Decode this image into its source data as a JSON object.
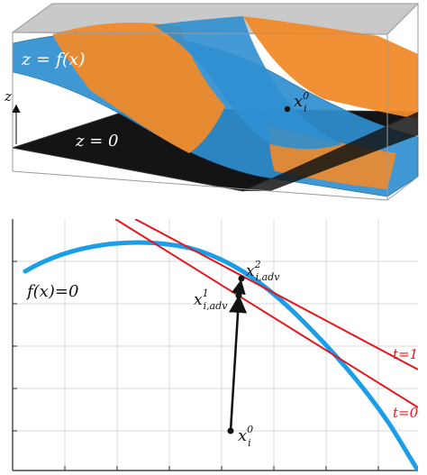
{
  "top_panel": {
    "surface_label": "z = f(x)",
    "plane_label": "z = 0",
    "z_axis_label": "z",
    "point_label": "x",
    "point_sup": "0",
    "point_sub": "i",
    "colors": {
      "surface_blue": "#2f8fd0",
      "surface_orange": "#f08a2a",
      "plane": "#111111",
      "box": "#9a9a9a",
      "box_top": "#bdbdbd"
    }
  },
  "bottom_panel": {
    "curve_label": "f(x)=0",
    "tangent_labels": [
      "t=1",
      "t=0"
    ],
    "points": [
      {
        "base": "x",
        "sub": "i",
        "sup": "0"
      },
      {
        "base": "x",
        "sub": "i,adv",
        "sup": "1"
      },
      {
        "base": "x",
        "sub": "i,adv",
        "sup": "2"
      }
    ],
    "colors": {
      "curve": "#1a9ee8",
      "tangent": "#e8141c",
      "grid": "#d8d8d8",
      "arrow": "#111111"
    }
  }
}
